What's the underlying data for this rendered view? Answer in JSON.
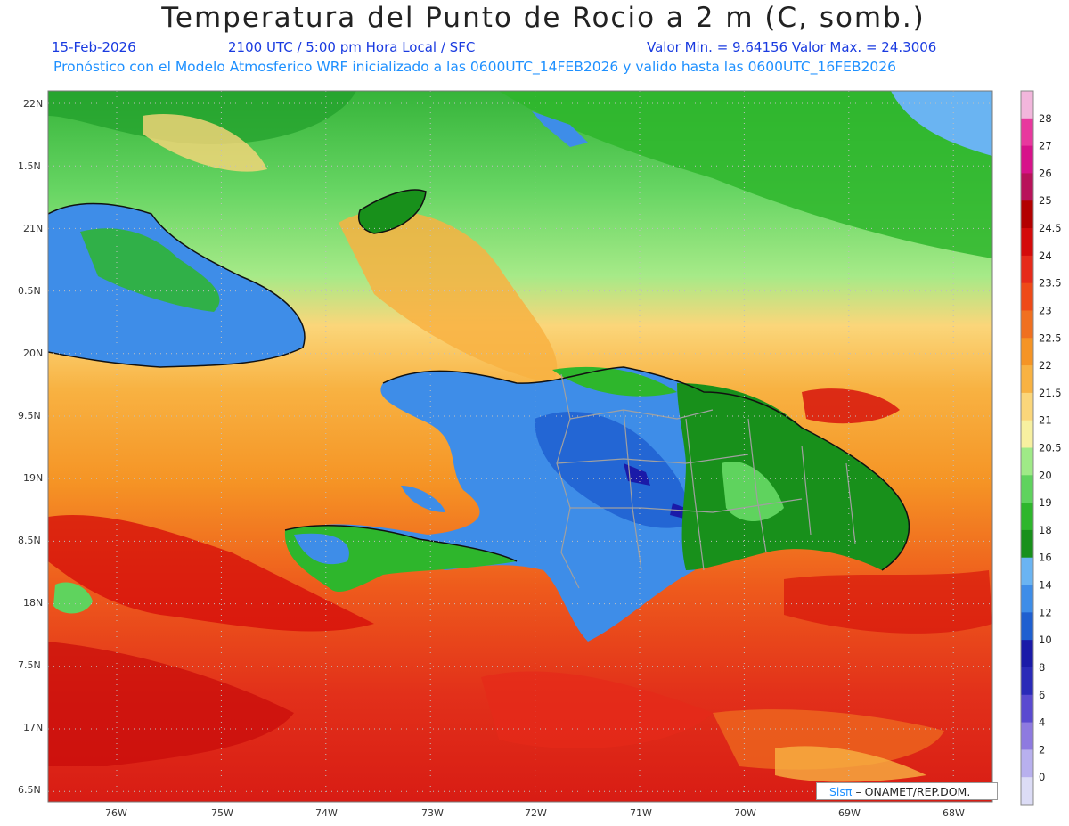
{
  "title": "Temperatura del Punto de Rocio a 2 m (C, somb.)",
  "subtitle": {
    "date": "15-Feb-2026",
    "time": "2100 UTC / 5:00 pm Hora Local / SFC",
    "minmax": "Valor Min. = 9.64156  Valor Max. = 24.3006"
  },
  "forecast_note": "Pronóstico con el Modelo Atmosferico WRF inicializado a las 0600UTC_14FEB2026 y valido hasta las  0600UTC_16FEB2026",
  "lat_labels": [
    "22N",
    "1.5N",
    "21N",
    "0.5N",
    "20N",
    "9.5N",
    "19N",
    "8.5N",
    "18N",
    "7.5N",
    "17N",
    "6.5N"
  ],
  "lon_labels": [
    "76W",
    "75W",
    "74W",
    "73W",
    "72W",
    "71W",
    "70W",
    "69W",
    "68W"
  ],
  "colorbar": {
    "labels": [
      "28",
      "27",
      "26",
      "25",
      "24.5",
      "24",
      "23.5",
      "23",
      "22.5",
      "22",
      "21.5",
      "21",
      "20.5",
      "20",
      "19",
      "18",
      "16",
      "14",
      "12",
      "10",
      "8",
      "6",
      "4",
      "2",
      "0"
    ],
    "colors": [
      "#f2b6dc",
      "#e8389e",
      "#d7128a",
      "#b8125a",
      "#b30000",
      "#d40a0a",
      "#e62a1a",
      "#ee4a18",
      "#f07020",
      "#f59425",
      "#f8b242",
      "#fbd67a",
      "#f7f0a0",
      "#9fea87",
      "#5fd35e",
      "#2eb62c",
      "#18901b",
      "#6ab4f2",
      "#3e8de8",
      "#1f5fd0",
      "#1a1aa8",
      "#2a2ab8",
      "#5a4ad0",
      "#8e7ae0",
      "#b8b0ee",
      "#dcdcf6"
    ]
  },
  "credit": {
    "prefix": "Sisπ",
    "text": "– ONAMET/REP.DOM."
  },
  "colors": {
    "title": "#222222",
    "subtitle": "#1a3be0",
    "forecast_note": "#1e90ff"
  }
}
